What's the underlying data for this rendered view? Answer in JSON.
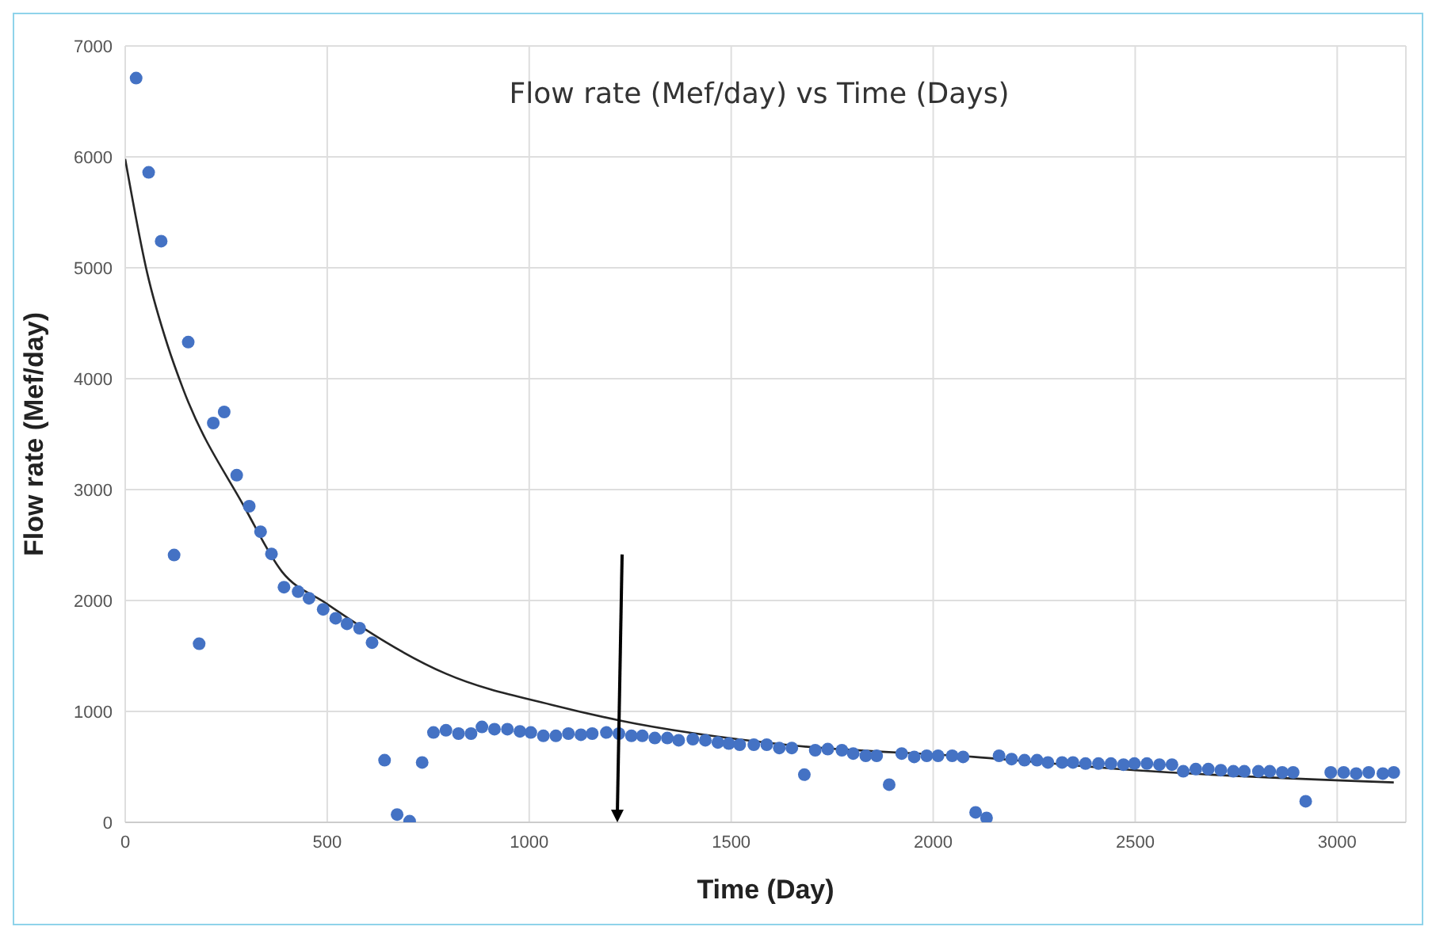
{
  "chart_data": {
    "type": "scatter",
    "title": "Flow rate (Mef/day) vs Time (Days)",
    "xlabel": "Time  (Day)",
    "ylabel": "Flow rate (Mef/day)",
    "xlim": [
      0,
      3170
    ],
    "xticks": [
      0,
      500,
      1000,
      1500,
      2000,
      2500,
      3000
    ],
    "ylim": [
      0,
      7000
    ],
    "yticks": [
      0,
      1000,
      2000,
      3000,
      4000,
      5000,
      6000,
      7000
    ],
    "grid": true,
    "marker": "circle",
    "series": [
      {
        "color": "#4472c4",
        "x": [
          27,
          58,
          89,
          121,
          156,
          183,
          218,
          245,
          276,
          307,
          335,
          362,
          393,
          428,
          455,
          490,
          521,
          549,
          580,
          611,
          642,
          673,
          704,
          735,
          763,
          794,
          825,
          856,
          883,
          914,
          946,
          977,
          1004,
          1035,
          1066,
          1097,
          1128,
          1156,
          1191,
          1222,
          1253,
          1280,
          1311,
          1342,
          1370,
          1405,
          1436,
          1467,
          1494,
          1521,
          1556,
          1588,
          1619,
          1650,
          1681,
          1708,
          1739,
          1774,
          1802,
          1833,
          1860,
          1891,
          1922,
          1953,
          1984,
          2012,
          2047,
          2074,
          2105,
          2132,
          2163,
          2194,
          2226,
          2257,
          2284,
          2319,
          2346,
          2377,
          2409,
          2440,
          2471,
          2498,
          2529,
          2560,
          2591,
          2619,
          2650,
          2681,
          2712,
          2743,
          2770,
          2805,
          2833,
          2864,
          2891,
          2922,
          2984,
          3016,
          3047,
          3078,
          3113,
          3140
        ],
        "values": [
          6710,
          5860,
          5240,
          2410,
          4330,
          1610,
          3600,
          3700,
          3130,
          2850,
          2620,
          2420,
          2120,
          2080,
          2020,
          1920,
          1840,
          1790,
          1750,
          1620,
          560,
          70,
          10,
          540,
          810,
          830,
          800,
          800,
          860,
          840,
          840,
          820,
          810,
          780,
          780,
          800,
          790,
          800,
          810,
          800,
          780,
          780,
          760,
          760,
          740,
          750,
          740,
          720,
          710,
          700,
          700,
          700,
          670,
          670,
          430,
          650,
          660,
          650,
          620,
          600,
          600,
          340,
          620,
          590,
          600,
          600,
          600,
          590,
          90,
          40,
          600,
          570,
          560,
          560,
          540,
          540,
          540,
          530,
          530,
          530,
          520,
          530,
          530,
          520,
          520,
          460,
          480,
          480,
          470,
          460,
          460,
          460,
          460,
          450,
          450,
          190,
          450,
          450,
          440,
          450,
          440,
          450
        ]
      },
      {
        "type": "line",
        "color": "#262626",
        "marker": "none",
        "x": [
          0,
          54,
          105,
          143,
          294,
          388,
          495,
          794,
          1066,
          1222,
          1634,
          2100,
          2500,
          3140
        ],
        "values": [
          5980,
          4960,
          4300,
          3910,
          2850,
          2260,
          1980,
          1340,
          1050,
          920,
          700,
          590,
          470,
          360
        ]
      }
    ]
  }
}
